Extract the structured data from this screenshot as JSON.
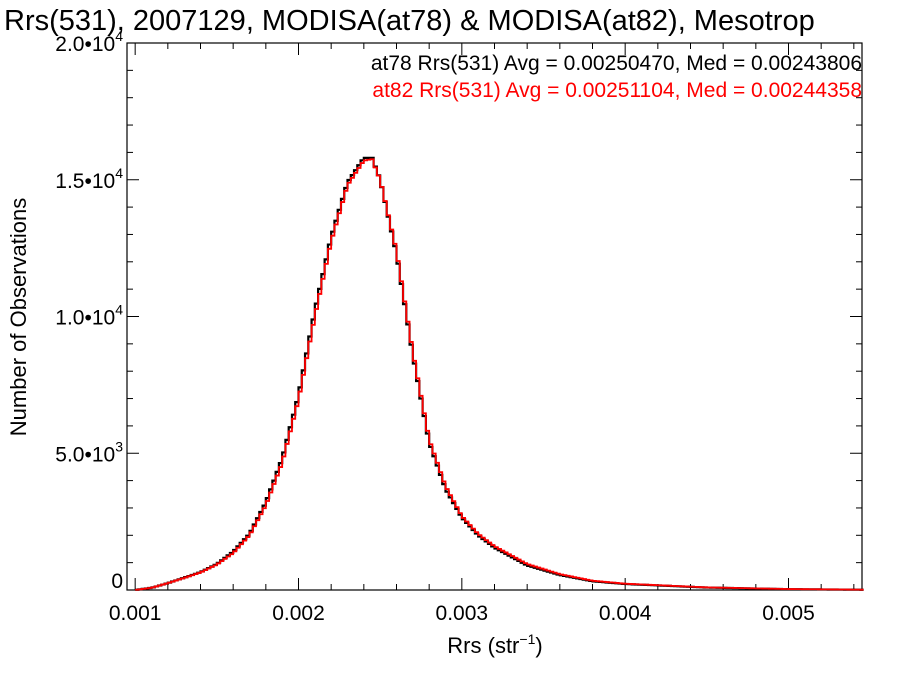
{
  "chart_data": {
    "type": "line",
    "title": "Rrs(531), 2007129, MODISA(at78) & MODISA(at82), Mesotrop",
    "xlabel": "Rrs (str",
    "xlabel_sup": "−1",
    "xlabel_tail": ")",
    "ylabel": "Number of Observations",
    "xlim": [
      0.00095,
      0.00545
    ],
    "ylim": [
      0,
      20000
    ],
    "x_ticks": [
      0.001,
      0.002,
      0.003,
      0.004,
      0.005
    ],
    "x_tick_labels": [
      "0.001",
      "0.002",
      "0.003",
      "0.004",
      "0.005"
    ],
    "y_ticks": [
      0,
      5000,
      10000,
      15000,
      20000
    ],
    "y_tick_labels": [
      {
        "base": "0",
        "exp": ""
      },
      {
        "base": "5.0•10",
        "exp": "3"
      },
      {
        "base": "1.0•10",
        "exp": "4"
      },
      {
        "base": "1.5•10",
        "exp": "4"
      },
      {
        "base": "2.0•10",
        "exp": "4"
      }
    ],
    "grid": false,
    "legend_position": "top-right",
    "series": [
      {
        "name": "at78",
        "color": "#000000",
        "label": "at78 Rrs(531) Avg = 0.00250470, Med = 0.00243806",
        "x": [
          0.001,
          0.0011,
          0.0012,
          0.0013,
          0.0014,
          0.0015,
          0.0016,
          0.0017,
          0.0018,
          0.0019,
          0.002,
          0.0021,
          0.0022,
          0.0023,
          0.0024,
          0.00245,
          0.0025,
          0.0026,
          0.0027,
          0.0028,
          0.0029,
          0.003,
          0.0031,
          0.0032,
          0.0034,
          0.0036,
          0.0038,
          0.004,
          0.0045,
          0.005,
          0.00545
        ],
        "y": [
          0,
          80,
          250,
          450,
          650,
          950,
          1400,
          2050,
          3200,
          4800,
          7100,
          10200,
          12900,
          14900,
          15800,
          15800,
          15000,
          12300,
          8600,
          5400,
          3700,
          2650,
          2000,
          1550,
          900,
          550,
          320,
          220,
          90,
          30,
          10
        ]
      },
      {
        "name": "at82",
        "color": "#ff0000",
        "label": "at82 Rrs(531) Avg = 0.00251104, Med = 0.00244358",
        "x": [
          0.001,
          0.0011,
          0.0012,
          0.0013,
          0.0014,
          0.0015,
          0.0016,
          0.0017,
          0.0018,
          0.0019,
          0.002,
          0.0021,
          0.0022,
          0.0023,
          0.0024,
          0.00245,
          0.0025,
          0.0026,
          0.0027,
          0.0028,
          0.0029,
          0.003,
          0.0031,
          0.0032,
          0.0034,
          0.0036,
          0.0038,
          0.004,
          0.0045,
          0.005,
          0.00545
        ],
        "y": [
          0,
          80,
          250,
          440,
          640,
          930,
          1350,
          2000,
          3100,
          4650,
          6950,
          10000,
          12750,
          14800,
          15700,
          15750,
          15000,
          12400,
          8700,
          5500,
          3800,
          2700,
          2050,
          1600,
          950,
          580,
          340,
          230,
          95,
          35,
          12
        ]
      }
    ]
  }
}
